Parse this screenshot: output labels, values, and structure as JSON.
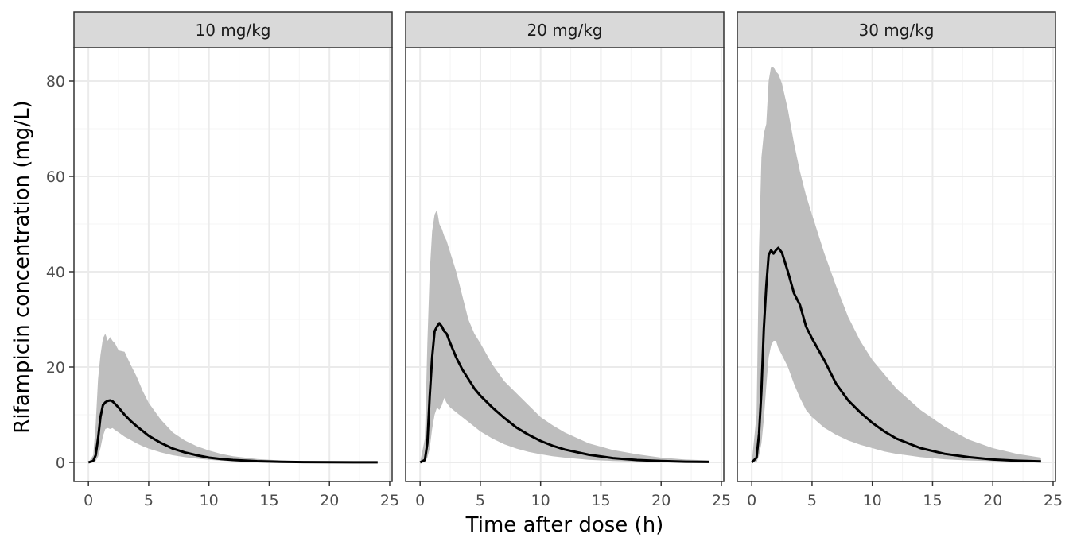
{
  "chart_data": {
    "type": "area",
    "xlabel": "Time after dose (h)",
    "ylabel": "Rifampicin concentration (mg/L)",
    "xlim": [
      -1.2,
      25.2
    ],
    "ylim": [
      -4,
      87
    ],
    "x_ticks": [
      0,
      5,
      10,
      15,
      20,
      25
    ],
    "y_ticks": [
      0,
      20,
      40,
      60,
      80
    ],
    "grid": true,
    "colors": {
      "band": "#bebebe",
      "median": "#000000",
      "strip": "#d9d9d9",
      "grid_major": "#ebebeb",
      "grid_minor": "#f4f4f4",
      "frame": "#333333"
    },
    "panels": [
      {
        "label": "10 mg/kg",
        "x": [
          0,
          0.4,
          0.6,
          0.8,
          1.0,
          1.2,
          1.4,
          1.6,
          1.8,
          2.0,
          2.2,
          2.5,
          3.0,
          3.5,
          4.0,
          4.5,
          5.0,
          6.0,
          7.0,
          8.0,
          9.0,
          10.0,
          11.0,
          12.0,
          14.0,
          16.0,
          18.0,
          20.0,
          22.0,
          24.0
        ],
        "median": [
          0,
          0.3,
          1.5,
          5.0,
          9.5,
          12.0,
          12.6,
          12.9,
          13.0,
          12.8,
          12.3,
          11.5,
          10.0,
          8.7,
          7.6,
          6.6,
          5.6,
          4.1,
          2.9,
          2.1,
          1.5,
          1.0,
          0.7,
          0.5,
          0.25,
          0.12,
          0.06,
          0.03,
          0.02,
          0.01
        ],
        "lower": [
          0,
          0.0,
          0.3,
          1.2,
          3.0,
          5.5,
          7.0,
          7.2,
          7.0,
          7.2,
          6.8,
          6.3,
          5.4,
          4.7,
          4.0,
          3.4,
          2.9,
          2.1,
          1.5,
          1.1,
          0.8,
          0.55,
          0.35,
          0.25,
          0.12,
          0.06,
          0.03,
          0.02,
          0.01,
          0.0
        ],
        "upper": [
          0,
          1.5,
          8.0,
          17.5,
          22.5,
          26.0,
          27.0,
          25.5,
          26.3,
          25.5,
          25.0,
          23.5,
          23.2,
          20.5,
          18.0,
          15.0,
          12.5,
          9.0,
          6.3,
          4.6,
          3.4,
          2.5,
          1.8,
          1.3,
          0.7,
          0.4,
          0.2,
          0.12,
          0.07,
          0.04
        ]
      },
      {
        "label": "20 mg/kg",
        "x": [
          0,
          0.4,
          0.6,
          0.8,
          1.0,
          1.2,
          1.4,
          1.6,
          1.8,
          2.0,
          2.2,
          2.5,
          3.0,
          3.5,
          4.0,
          4.5,
          5.0,
          6.0,
          7.0,
          8.0,
          9.0,
          10.0,
          11.0,
          12.0,
          14.0,
          16.0,
          18.0,
          20.0,
          22.0,
          24.0
        ],
        "median": [
          0,
          0.5,
          4.0,
          14.0,
          22.0,
          27.5,
          28.5,
          29.2,
          28.5,
          27.5,
          27.0,
          25.0,
          22.0,
          19.5,
          17.5,
          15.5,
          14.0,
          11.5,
          9.3,
          7.3,
          5.8,
          4.5,
          3.5,
          2.7,
          1.6,
          0.9,
          0.5,
          0.3,
          0.15,
          0.1
        ],
        "lower": [
          0,
          0.0,
          1.0,
          3.0,
          7.0,
          10.0,
          11.5,
          11.0,
          12.0,
          13.5,
          12.5,
          11.5,
          10.5,
          9.5,
          8.5,
          7.5,
          6.5,
          5.0,
          3.8,
          2.9,
          2.2,
          1.7,
          1.3,
          1.0,
          0.55,
          0.3,
          0.17,
          0.1,
          0.05,
          0.03
        ],
        "upper": [
          0,
          5.0,
          25.0,
          40.0,
          48.5,
          52.0,
          53.0,
          50.0,
          49.0,
          47.5,
          46.5,
          44.0,
          40.0,
          35.0,
          30.0,
          27.0,
          25.0,
          20.5,
          17.0,
          14.5,
          12.0,
          9.5,
          7.8,
          6.3,
          4.0,
          2.6,
          1.7,
          1.0,
          0.6,
          0.4
        ]
      },
      {
        "label": "30 mg/kg",
        "x": [
          0,
          0.4,
          0.6,
          0.8,
          1.0,
          1.2,
          1.4,
          1.6,
          1.8,
          2.0,
          2.2,
          2.5,
          3.0,
          3.5,
          4.0,
          4.5,
          5.0,
          6.0,
          7.0,
          8.0,
          9.0,
          10.0,
          11.0,
          12.0,
          14.0,
          16.0,
          18.0,
          20.0,
          22.0,
          24.0
        ],
        "median": [
          0,
          1.0,
          6.0,
          15.0,
          28.0,
          37.0,
          43.5,
          44.5,
          43.8,
          44.5,
          45.0,
          44.0,
          40.0,
          35.5,
          33.0,
          28.5,
          26.0,
          21.5,
          16.5,
          13.0,
          10.5,
          8.3,
          6.5,
          5.0,
          3.0,
          1.8,
          1.1,
          0.6,
          0.35,
          0.2
        ],
        "lower": [
          0,
          0.0,
          1.5,
          4.0,
          9.0,
          16.0,
          22.0,
          24.5,
          25.5,
          25.5,
          24.0,
          22.5,
          20.0,
          16.5,
          13.5,
          11.0,
          9.5,
          7.3,
          5.8,
          4.6,
          3.7,
          3.0,
          2.3,
          1.8,
          1.1,
          0.65,
          0.4,
          0.25,
          0.15,
          0.1
        ],
        "upper": [
          0,
          10.0,
          45.0,
          64.0,
          69.0,
          71.0,
          80.0,
          83.0,
          83.0,
          82.0,
          81.5,
          79.5,
          74.0,
          67.0,
          61.0,
          56.0,
          52.0,
          44.0,
          37.0,
          30.5,
          25.5,
          21.5,
          18.5,
          15.5,
          11.0,
          7.5,
          4.8,
          3.0,
          1.8,
          1.0
        ]
      }
    ]
  }
}
